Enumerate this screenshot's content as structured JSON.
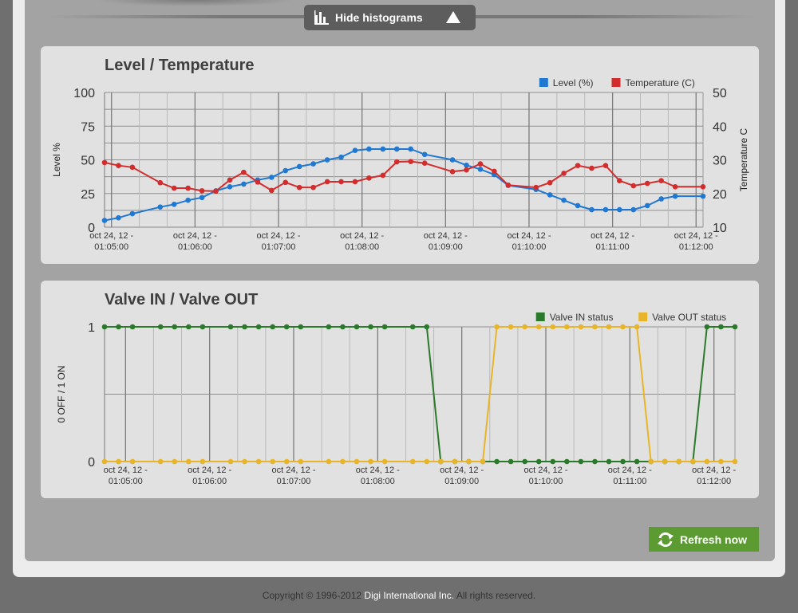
{
  "toolbar": {
    "toggle_label": "Hide histograms"
  },
  "colors": {
    "level": "#1f78d1",
    "temperature": "#d22c2c",
    "valve_in": "#2b7a2b",
    "valve_out": "#e8b52a",
    "refresh": "#5b9b32"
  },
  "icons": {
    "toggle": "bar-chart-icon",
    "collapse": "triangle-up-icon",
    "refresh": "refresh-arrows-icon"
  },
  "refresh": {
    "label": "Refresh now"
  },
  "footer": {
    "copyright": "Copyright © 1996-2012",
    "company": "Digi International Inc.",
    "rights": "All rights reserved."
  },
  "chart_data": [
    {
      "type": "line",
      "title": "Level / Temperature",
      "ylabel": "Level %",
      "y2label": "Temperature C",
      "ylim": [
        0,
        100
      ],
      "y2lim": [
        10,
        50
      ],
      "yticks": [
        "0",
        "25",
        "50",
        "75",
        "100"
      ],
      "y2ticks": [
        "10",
        "20",
        "30",
        "40",
        "50"
      ],
      "xlim": [
        "01:04:55",
        "01:12:05"
      ],
      "xticks": [
        {
          "t": "01:05:00",
          "label1": "oct 24, 12 -",
          "label2": "01:05:00"
        },
        {
          "t": "01:06:00",
          "label1": "oct 24, 12 -",
          "label2": "01:06:00"
        },
        {
          "t": "01:07:00",
          "label1": "oct 24, 12 -",
          "label2": "01:07:00"
        },
        {
          "t": "01:08:00",
          "label1": "oct 24, 12 -",
          "label2": "01:08:00"
        },
        {
          "t": "01:09:00",
          "label1": "oct 24, 12 -",
          "label2": "01:09:00"
        },
        {
          "t": "01:10:00",
          "label1": "oct 24, 12 -",
          "label2": "01:10:00"
        },
        {
          "t": "01:11:00",
          "label1": "oct 24, 12 -",
          "label2": "01:11:00"
        },
        {
          "t": "01:12:00",
          "label1": "oct 24, 12 -",
          "label2": "01:12:00"
        }
      ],
      "legend": "top-right",
      "grid": true,
      "x": [
        "01:04:55",
        "01:05:05",
        "01:05:15",
        "01:05:35",
        "01:05:45",
        "01:05:55",
        "01:06:05",
        "01:06:15",
        "01:06:25",
        "01:06:35",
        "01:06:45",
        "01:06:55",
        "01:07:05",
        "01:07:15",
        "01:07:25",
        "01:07:35",
        "01:07:45",
        "01:07:55",
        "01:08:05",
        "01:08:15",
        "01:08:25",
        "01:08:35",
        "01:08:45",
        "01:09:05",
        "01:09:15",
        "01:09:25",
        "01:09:35",
        "01:09:45",
        "01:10:05",
        "01:10:15",
        "01:10:25",
        "01:10:35",
        "01:10:45",
        "01:10:55",
        "01:11:05",
        "01:11:15",
        "01:11:25",
        "01:11:35",
        "01:11:45",
        "01:12:05"
      ],
      "series": [
        {
          "name": "Level (%)",
          "axis": "left",
          "values": [
            5,
            7,
            10,
            15,
            17,
            20,
            22,
            27,
            30,
            32,
            35,
            37,
            42,
            45,
            47,
            50,
            52,
            57,
            58,
            58,
            58,
            58,
            54,
            50,
            46,
            43,
            39,
            31,
            28,
            24,
            20,
            16,
            13,
            13,
            13,
            13,
            16,
            21,
            23,
            23
          ]
        },
        {
          "name": "Temperature (C)",
          "axis": "right",
          "values": [
            29.2,
            28.3,
            27.8,
            23.2,
            21.6,
            21.6,
            20.8,
            20.7,
            24.0,
            26.3,
            23.4,
            20.9,
            23.3,
            21.8,
            21.8,
            23.5,
            23.5,
            23.5,
            24.6,
            25.4,
            29.4,
            29.5,
            29.0,
            26.5,
            27.0,
            28.8,
            26.6,
            22.5,
            21.8,
            23.2,
            26.0,
            28.3,
            27.5,
            28.3,
            23.8,
            22.3,
            23.0,
            23.8,
            22.0,
            22.0
          ]
        }
      ]
    },
    {
      "type": "line",
      "title": "Valve IN / Valve OUT",
      "ylabel": "0 OFF / 1 ON",
      "ylim": [
        0,
        1
      ],
      "yticks": [
        "0",
        "1"
      ],
      "xlim": [
        "01:04:45",
        "01:12:15"
      ],
      "xticks": [
        {
          "t": "01:05:00",
          "label1": "oct 24, 12 -",
          "label2": "01:05:00"
        },
        {
          "t": "01:06:00",
          "label1": "oct 24, 12 -",
          "label2": "01:06:00"
        },
        {
          "t": "01:07:00",
          "label1": "oct 24, 12 -",
          "label2": "01:07:00"
        },
        {
          "t": "01:08:00",
          "label1": "oct 24, 12 -",
          "label2": "01:08:00"
        },
        {
          "t": "01:09:00",
          "label1": "oct 24, 12 -",
          "label2": "01:09:00"
        },
        {
          "t": "01:10:00",
          "label1": "oct 24, 12 -",
          "label2": "01:10:00"
        },
        {
          "t": "01:11:00",
          "label1": "oct 24, 12 -",
          "label2": "01:11:00"
        },
        {
          "t": "01:12:00",
          "label1": "oct 24, 12 -",
          "label2": "01:12:00"
        }
      ],
      "legend": "top-right",
      "grid": true,
      "x": [
        "01:04:45",
        "01:04:55",
        "01:05:05",
        "01:05:25",
        "01:05:35",
        "01:05:45",
        "01:05:55",
        "01:06:15",
        "01:06:25",
        "01:06:35",
        "01:06:45",
        "01:06:55",
        "01:07:05",
        "01:07:25",
        "01:07:35",
        "01:07:45",
        "01:07:55",
        "01:08:05",
        "01:08:25",
        "01:08:35",
        "01:08:45",
        "01:08:55",
        "01:09:05",
        "01:09:15",
        "01:09:25",
        "01:09:35",
        "01:09:45",
        "01:09:55",
        "01:10:05",
        "01:10:15",
        "01:10:25",
        "01:10:35",
        "01:10:45",
        "01:10:55",
        "01:11:05",
        "01:11:15",
        "01:11:25",
        "01:11:35",
        "01:11:45",
        "01:11:55",
        "01:12:05",
        "01:12:15"
      ],
      "series": [
        {
          "name": "Valve IN status",
          "values": [
            1,
            1,
            1,
            1,
            1,
            1,
            1,
            1,
            1,
            1,
            1,
            1,
            1,
            1,
            1,
            1,
            1,
            1,
            1,
            1,
            0,
            0,
            0,
            0,
            0,
            0,
            0,
            0,
            0,
            0,
            0,
            0,
            0,
            0,
            0,
            0,
            0,
            0,
            0,
            1,
            1,
            1
          ]
        },
        {
          "name": "Valve OUT status",
          "values": [
            0,
            0,
            0,
            0,
            0,
            0,
            0,
            0,
            0,
            0,
            0,
            0,
            0,
            0,
            0,
            0,
            0,
            0,
            0,
            0,
            0,
            0,
            0,
            0,
            1,
            1,
            1,
            1,
            1,
            1,
            1,
            1,
            1,
            1,
            1,
            0,
            0,
            0,
            0,
            0,
            0,
            0
          ]
        }
      ]
    }
  ]
}
